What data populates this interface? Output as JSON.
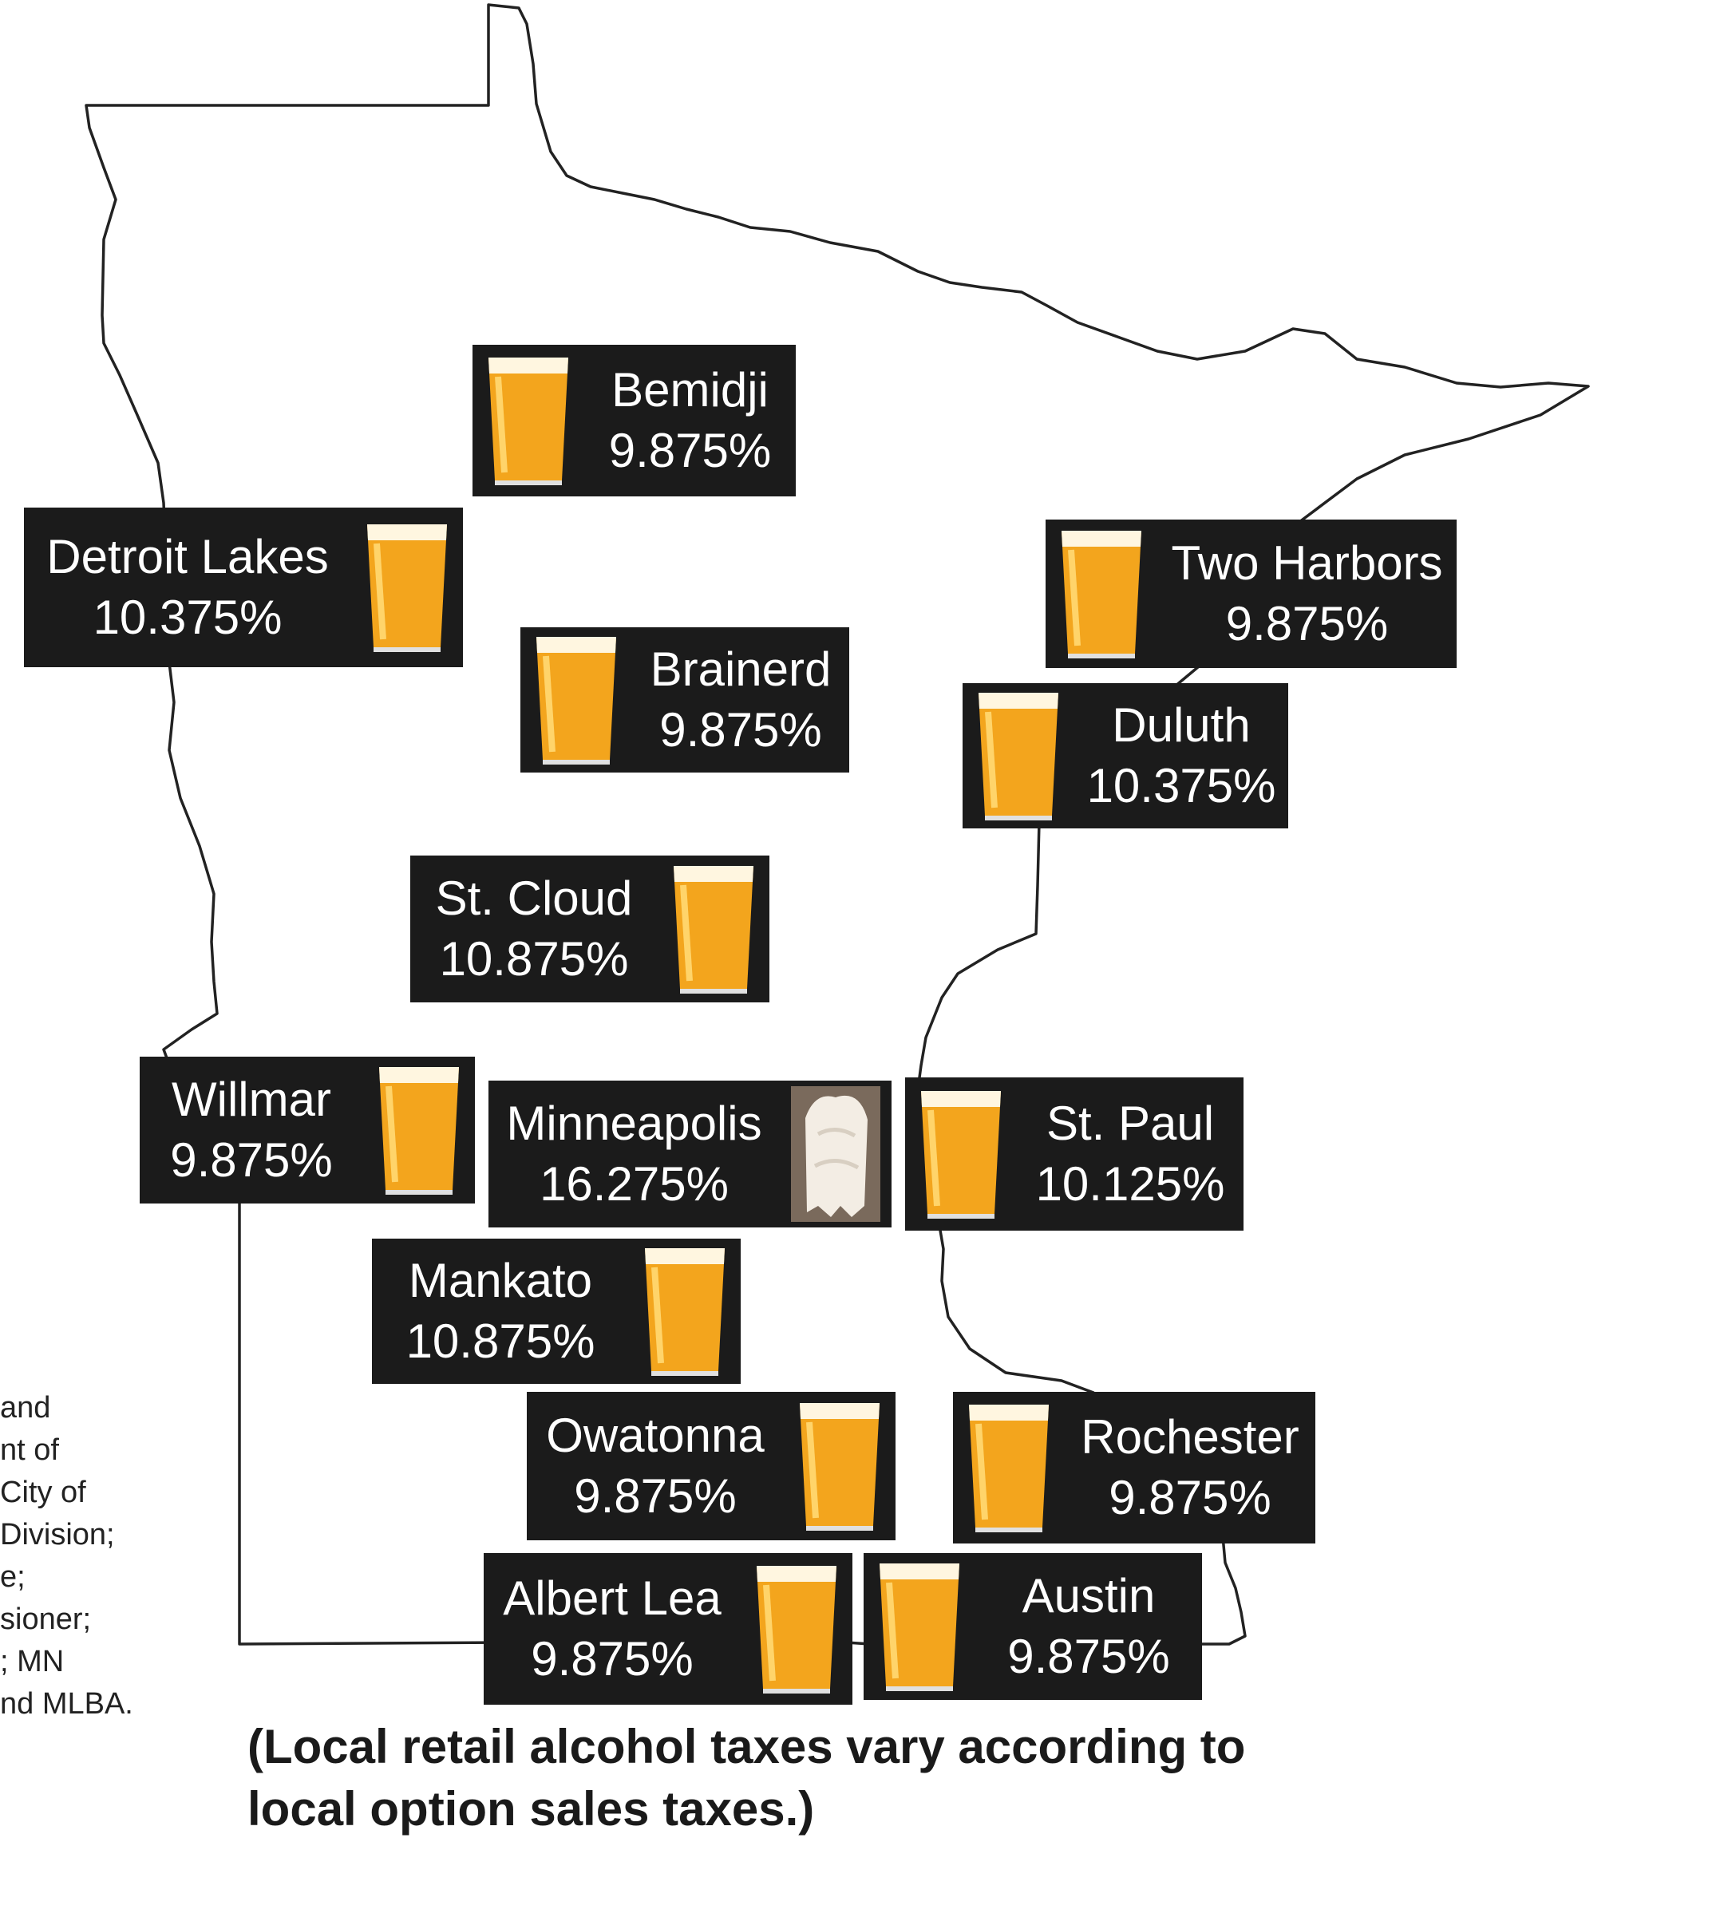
{
  "cities": [
    {
      "id": "bemidji",
      "name": "Bemidji",
      "rate": "9.875%",
      "icon": "beer-glass-icon"
    },
    {
      "id": "detroit-lakes",
      "name": "Detroit Lakes",
      "rate": "10.375%",
      "icon": "beer-glass-icon"
    },
    {
      "id": "two-harbors",
      "name": "Two Harbors",
      "rate": "9.875%",
      "icon": "beer-glass-icon"
    },
    {
      "id": "brainerd",
      "name": "Brainerd",
      "rate": "9.875%",
      "icon": "beer-glass-icon"
    },
    {
      "id": "duluth",
      "name": "Duluth",
      "rate": "10.375%",
      "icon": "beer-glass-icon"
    },
    {
      "id": "st-cloud",
      "name": "St. Cloud",
      "rate": "10.875%",
      "icon": "beer-glass-icon"
    },
    {
      "id": "willmar",
      "name": "Willmar",
      "rate": "9.875%",
      "icon": "beer-glass-icon"
    },
    {
      "id": "minneapolis",
      "name": "Minneapolis",
      "rate": "16.275%",
      "icon": "foam-glass-icon"
    },
    {
      "id": "st-paul",
      "name": "St. Paul",
      "rate": "10.125%",
      "icon": "beer-glass-icon"
    },
    {
      "id": "mankato",
      "name": "Mankato",
      "rate": "10.875%",
      "icon": "beer-glass-icon"
    },
    {
      "id": "owatonna",
      "name": "Owatonna",
      "rate": "9.875%",
      "icon": "beer-glass-icon"
    },
    {
      "id": "rochester",
      "name": "Rochester",
      "rate": "9.875%",
      "icon": "beer-glass-icon"
    },
    {
      "id": "albert-lea",
      "name": "Albert Lea",
      "rate": "9.875%",
      "icon": "beer-glass-icon"
    },
    {
      "id": "austin",
      "name": "Austin",
      "rate": "9.875%",
      "icon": "beer-glass-icon"
    }
  ],
  "credits": {
    "lines": [
      "and",
      "",
      "nt of",
      "City of",
      "Division;",
      "e;",
      "sioner;",
      "; MN",
      "nd MLBA."
    ],
    "accent_color": "#2a7ab8"
  },
  "note": {
    "line1": "(Local retail alcohol taxes vary according to",
    "line2": "local option sales taxes.)"
  },
  "colors": {
    "label_bg": "#1b1b1b",
    "label_text": "#ffffff",
    "beer": "#f3a51d",
    "outline": "#222222"
  }
}
